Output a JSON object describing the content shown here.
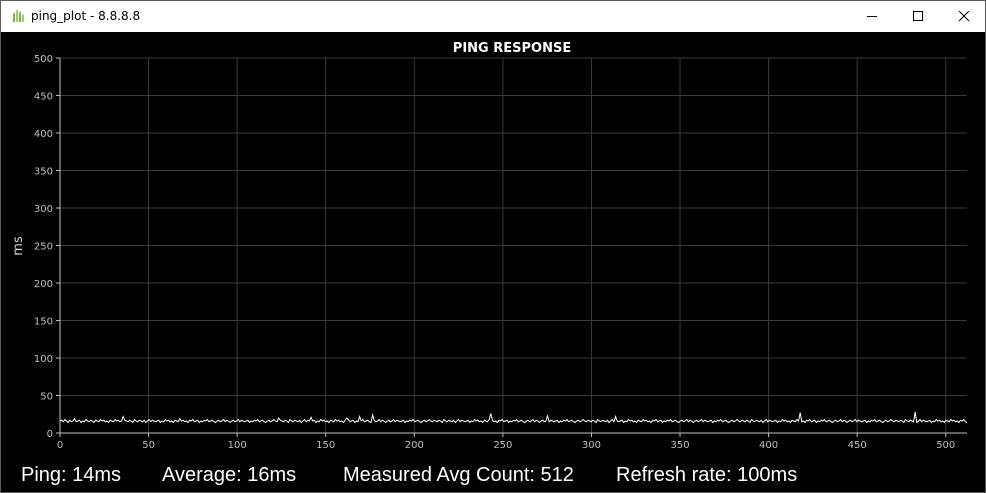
{
  "window": {
    "title": "ping_plot - 8.8.8.8",
    "icon": "app-leaf-icon"
  },
  "controls": {
    "minimize_icon": "minimize-icon",
    "maximize_icon": "maximize-icon",
    "close_icon": "close-icon"
  },
  "status": {
    "ping": "Ping: 14ms",
    "average": "Average: 16ms",
    "count": "Measured Avg Count: 512",
    "refresh": "Refresh rate: 100ms"
  },
  "colors": {
    "background": "#000000",
    "grid": "#3a3a3a",
    "axis": "#bfbfbf",
    "line": "#ffffff",
    "text": "#ffffff"
  },
  "chart_data": {
    "type": "line",
    "title": "PING RESPONSE",
    "xlabel": "",
    "ylabel": "ms",
    "xlim": [
      0,
      512
    ],
    "ylim": [
      0,
      500
    ],
    "xticks": [
      0,
      50,
      100,
      150,
      200,
      250,
      300,
      350,
      400,
      450,
      500
    ],
    "yticks": [
      0,
      50,
      100,
      150,
      200,
      250,
      300,
      350,
      400,
      450,
      500
    ],
    "grid": true,
    "series": [
      {
        "values": [
          16,
          17,
          15,
          18,
          16,
          14,
          17,
          15,
          16,
          19,
          15,
          16,
          17,
          14,
          16,
          15,
          18,
          16,
          15,
          17,
          16,
          14,
          17,
          16,
          15,
          18,
          16,
          17,
          15,
          16,
          14,
          17,
          16,
          15,
          18,
          16,
          17,
          15,
          16,
          22,
          17,
          16,
          15,
          17,
          16,
          14,
          18,
          16,
          15,
          17,
          16,
          15,
          17,
          14,
          16,
          18,
          15,
          17,
          16,
          15,
          16,
          17,
          14,
          16,
          15,
          18,
          16,
          17,
          15,
          16,
          14,
          17,
          16,
          15,
          19,
          16,
          17,
          15,
          16,
          14,
          17,
          16,
          18,
          15,
          16,
          17,
          14,
          16,
          15,
          17,
          16,
          18,
          15,
          16,
          17,
          15,
          14,
          16,
          17,
          15,
          16,
          18,
          15,
          17,
          16,
          14,
          16,
          17,
          15,
          16,
          18,
          15,
          17,
          16,
          15,
          16,
          17,
          14,
          16,
          15,
          17,
          16,
          18,
          15,
          16,
          17,
          15,
          14,
          16,
          17,
          15,
          16,
          18,
          16,
          15,
          20,
          17,
          16,
          15,
          17,
          16,
          14,
          18,
          16,
          15,
          17,
          16,
          15,
          17,
          14,
          16,
          18,
          15,
          17,
          16,
          21,
          16,
          17,
          14,
          16,
          15,
          18,
          16,
          17,
          15,
          16,
          14,
          17,
          16,
          15,
          18,
          16,
          17,
          15,
          16,
          14,
          17,
          20,
          18,
          15,
          16,
          17,
          14,
          16,
          15,
          22,
          16,
          18,
          15,
          16,
          17,
          15,
          14,
          24,
          17,
          15,
          16,
          18,
          15,
          17,
          16,
          14,
          16,
          17,
          15,
          16,
          18,
          15,
          17,
          16,
          15,
          16,
          17,
          14,
          16,
          15,
          17,
          16,
          18,
          15,
          16,
          17,
          15,
          14,
          16,
          17,
          15,
          16,
          18,
          16,
          15,
          17,
          16,
          15,
          17,
          16,
          14,
          18,
          16,
          15,
          17,
          16,
          15,
          17,
          14,
          16,
          18,
          15,
          17,
          16,
          15,
          16,
          17,
          14,
          16,
          15,
          18,
          16,
          17,
          15,
          16,
          14,
          17,
          16,
          15,
          18,
          26,
          17,
          15,
          16,
          14,
          17,
          16,
          18,
          15,
          16,
          17,
          14,
          16,
          15,
          17,
          16,
          18,
          15,
          16,
          17,
          15,
          14,
          16,
          17,
          15,
          16,
          18,
          15,
          17,
          16,
          14,
          16,
          17,
          15,
          16,
          23,
          15,
          17,
          16,
          15,
          16,
          17,
          14,
          16,
          15,
          17,
          16,
          18,
          15,
          16,
          17,
          15,
          14,
          16,
          17,
          15,
          16,
          18,
          16,
          15,
          17,
          16,
          15,
          17,
          16,
          14,
          18,
          16,
          15,
          17,
          16,
          15,
          17,
          14,
          16,
          18,
          15,
          22,
          16,
          15,
          16,
          17,
          14,
          16,
          15,
          18,
          16,
          17,
          15,
          16,
          14,
          17,
          16,
          15,
          18,
          16,
          17,
          15,
          16,
          14,
          17,
          16,
          18,
          15,
          16,
          17,
          14,
          16,
          15,
          17,
          16,
          18,
          15,
          16,
          17,
          15,
          14,
          16,
          17,
          15,
          16,
          18,
          15,
          17,
          16,
          14,
          16,
          17,
          15,
          16,
          18,
          15,
          17,
          16,
          15,
          16,
          17,
          14,
          16,
          15,
          17,
          16,
          18,
          15,
          16,
          17,
          15,
          14,
          16,
          17,
          15,
          16,
          18,
          16,
          15,
          17,
          16,
          15,
          17,
          16,
          14,
          18,
          16,
          15,
          17,
          16,
          15,
          17,
          14,
          16,
          18,
          15,
          17,
          16,
          15,
          16,
          17,
          14,
          16,
          15,
          18,
          16,
          17,
          15,
          16,
          14,
          17,
          16,
          15,
          18,
          16,
          27,
          15,
          16,
          14,
          17,
          16,
          18,
          15,
          16,
          17,
          14,
          16,
          15,
          17,
          16,
          18,
          15,
          16,
          17,
          15,
          14,
          16,
          17,
          15,
          16,
          18,
          15,
          17,
          16,
          14,
          16,
          17,
          15,
          16,
          18,
          15,
          17,
          16,
          15,
          16,
          17,
          14,
          16,
          15,
          17,
          16,
          18,
          15,
          16,
          17,
          15,
          14,
          16,
          17,
          15,
          16,
          18,
          16,
          15,
          17,
          16,
          15,
          17,
          16,
          14,
          18,
          16,
          15,
          17,
          16,
          15,
          28,
          14,
          16,
          18,
          15,
          17,
          16,
          15,
          16,
          17,
          14,
          16,
          15,
          18,
          16,
          17,
          15,
          16,
          14,
          17,
          16,
          15,
          18,
          16,
          17,
          15,
          16,
          14,
          17,
          16,
          18,
          15,
          14
        ]
      }
    ]
  }
}
